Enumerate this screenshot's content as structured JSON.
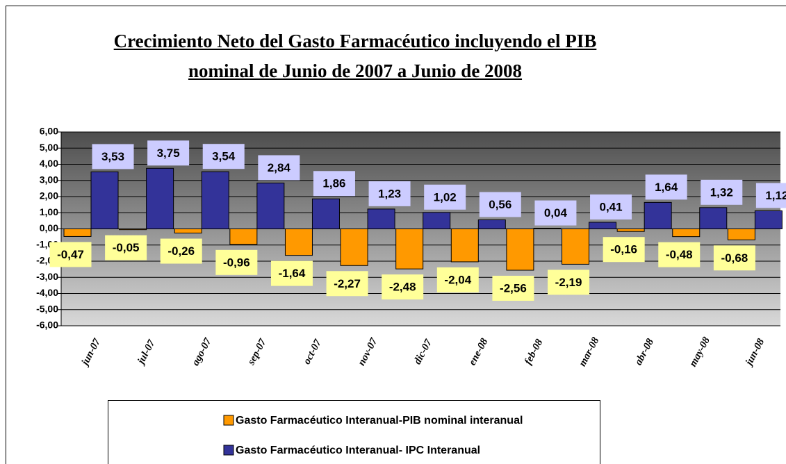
{
  "chart_data": {
    "type": "bar",
    "title": "Crecimiento Neto del Gasto Farmacéutico incluyendo el PIB nominal de Junio de 2007 a Junio de 2008",
    "categories": [
      "jun-07",
      "jul-07",
      "ago-07",
      "sep-07",
      "oct-07",
      "nov-07",
      "dic-07",
      "ene-08",
      "feb-08",
      "mar-08",
      "abr-08",
      "may-08",
      "jun-08"
    ],
    "series": [
      {
        "name": "Gasto Farmacéutico Interanual-PIB nominal interanual",
        "color": "#ff9900",
        "values": [
          -0.47,
          -0.05,
          -0.26,
          -0.96,
          -1.64,
          -2.27,
          -2.48,
          -2.04,
          -2.56,
          -2.19,
          -0.16,
          -0.48,
          -0.68
        ],
        "value_labels": [
          "-0,47",
          "-0,05",
          "-0,26",
          "-0,96",
          "-1,64",
          "-2,27",
          "-2,48",
          "-2,04",
          "-2,56",
          "-2,19",
          "-0,16",
          "-0,48",
          "-0,68"
        ]
      },
      {
        "name": "Gasto Farmacéutico Interanual- IPC Interanual",
        "color": "#333399",
        "values": [
          3.53,
          3.75,
          3.54,
          2.84,
          1.86,
          1.23,
          1.02,
          0.56,
          0.04,
          0.41,
          1.64,
          1.32,
          1.12
        ],
        "value_labels": [
          "3,53",
          "3,75",
          "3,54",
          "2,84",
          "1,86",
          "1,23",
          "1,02",
          "0,56",
          "0,04",
          "0,41",
          "1,64",
          "1,32",
          "1,12"
        ]
      }
    ],
    "ylim": [
      -6,
      6
    ],
    "yticks": [
      {
        "value": 6,
        "label": "6,00"
      },
      {
        "value": 5,
        "label": "5,00"
      },
      {
        "value": 4,
        "label": "4,00"
      },
      {
        "value": 3,
        "label": "3,00"
      },
      {
        "value": 2,
        "label": "2,00"
      },
      {
        "value": 1,
        "label": "1,00"
      },
      {
        "value": 0,
        "label": "0,00"
      },
      {
        "value": -1,
        "label": "-1,00"
      },
      {
        "value": -2,
        "label": "-2,00"
      },
      {
        "value": -3,
        "label": "-3,00"
      },
      {
        "value": -4,
        "label": "-4,00"
      },
      {
        "value": -5,
        "label": "-5,00"
      },
      {
        "value": -6,
        "label": "-6,00"
      }
    ],
    "grid": true,
    "legend": "bottom"
  }
}
